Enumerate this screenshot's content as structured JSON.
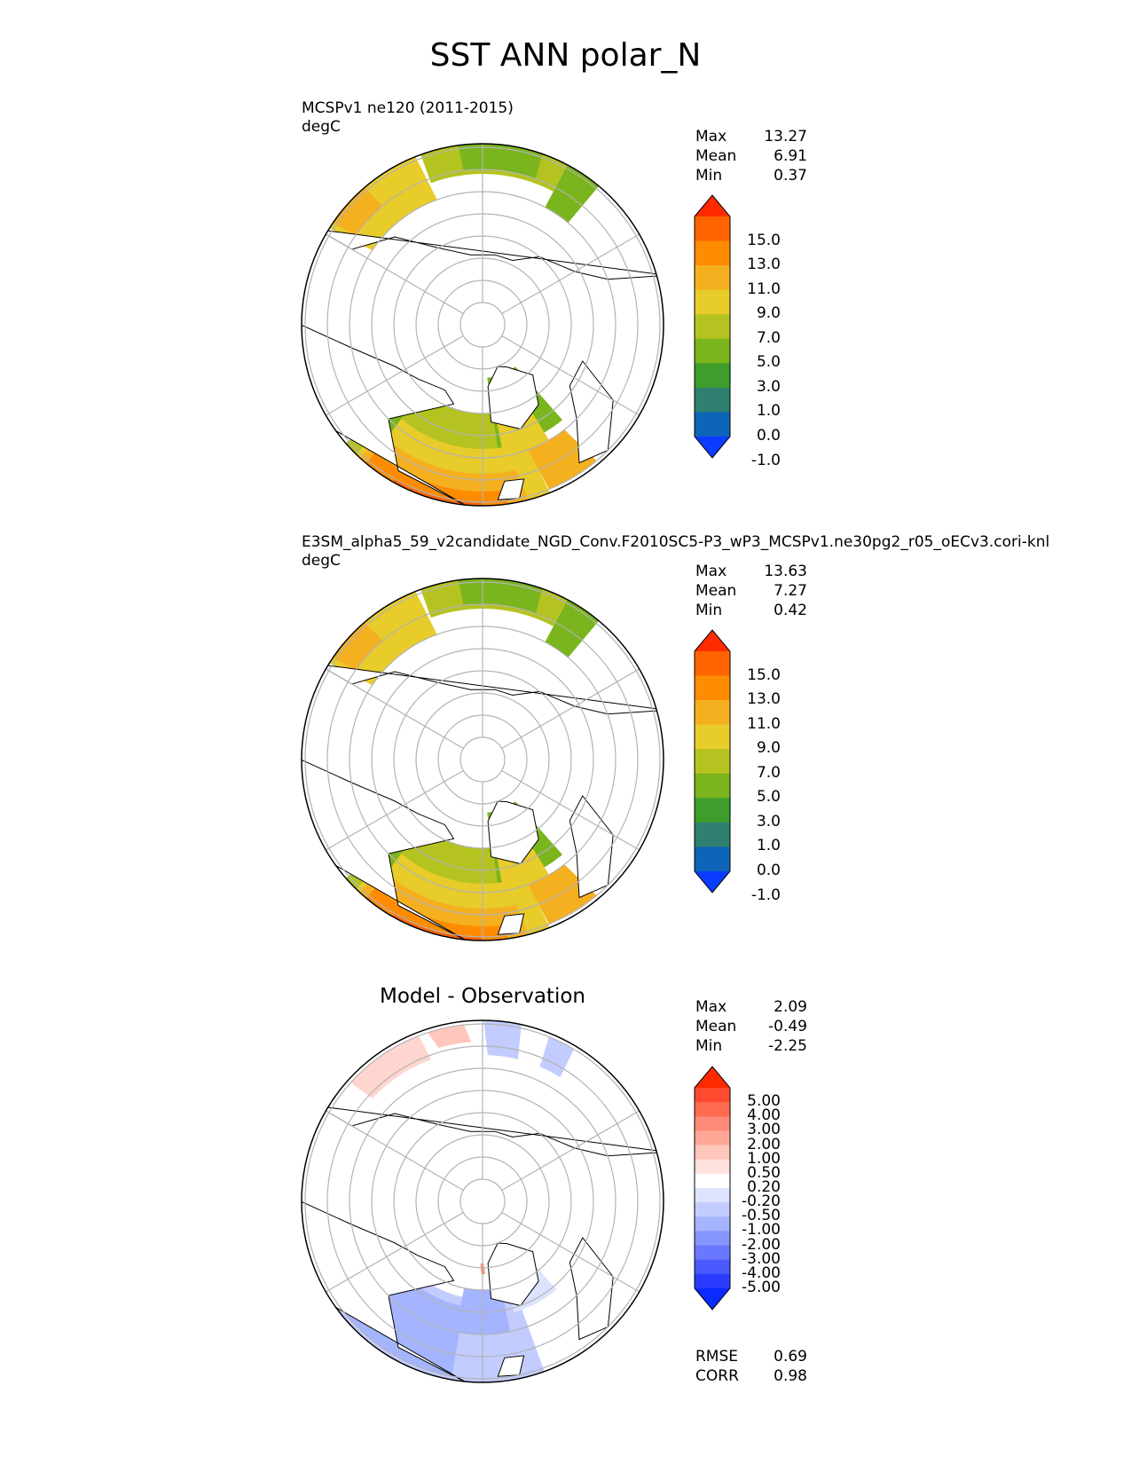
{
  "title": "SST ANN polar_N",
  "panels": [
    {
      "title_line1": "MCSPv1 ne120 (2011-2015)",
      "title_line2": "degC",
      "stats": [
        {
          "label": "Max",
          "value": "13.27"
        },
        {
          "label": "Mean",
          "value": "6.91"
        },
        {
          "label": "Min",
          "value": "0.37"
        }
      ],
      "colorbar_ticks": [
        "15.0",
        "13.0",
        "11.0",
        "9.0",
        "7.0",
        "5.0",
        "3.0",
        "1.0",
        "0.0",
        "-1.0"
      ],
      "colorbar_colors": [
        "#ff2a00",
        "#ff6400",
        "#ff8c00",
        "#f5b020",
        "#e8cc2a",
        "#b5c320",
        "#7ab51d",
        "#3e9d2b",
        "#2f8070",
        "#0d64b8",
        "#0a3cff"
      ]
    },
    {
      "title_line1": "E3SM_alpha5_59_v2candidate_NGD_Conv.F2010SC5-P3_wP3_MCSPv1.ne30pg2_r05_oECv3.cori-knl",
      "title_line2": "degC",
      "stats": [
        {
          "label": "Max",
          "value": "13.63"
        },
        {
          "label": "Mean",
          "value": "7.27"
        },
        {
          "label": "Min",
          "value": "0.42"
        }
      ],
      "colorbar_ticks": [
        "15.0",
        "13.0",
        "11.0",
        "9.0",
        "7.0",
        "5.0",
        "3.0",
        "1.0",
        "0.0",
        "-1.0"
      ],
      "colorbar_colors": [
        "#ff2a00",
        "#ff6400",
        "#ff8c00",
        "#f5b020",
        "#e8cc2a",
        "#b5c320",
        "#7ab51d",
        "#3e9d2b",
        "#2f8070",
        "#0d64b8",
        "#0a3cff"
      ]
    },
    {
      "title_line1": "Model - Observation",
      "stats": [
        {
          "label": "Max",
          "value": "2.09"
        },
        {
          "label": "Mean",
          "value": "-0.49"
        },
        {
          "label": "Min",
          "value": "-2.25"
        }
      ],
      "colorbar_ticks": [
        "5.00",
        "4.00",
        "3.00",
        "2.00",
        "1.00",
        "0.50",
        "0.20",
        "-0.20",
        "-0.50",
        "-1.00",
        "-2.00",
        "-3.00",
        "-4.00",
        "-5.00"
      ],
      "colorbar_colors": [
        "#ff2a00",
        "#ff4a30",
        "#ff6a50",
        "#ff8a78",
        "#ffa898",
        "#ffc6bc",
        "#ffe2dc",
        "#ffffff",
        "#dde3ff",
        "#c2ccff",
        "#a4b4ff",
        "#8796ff",
        "#6a78ff",
        "#4a5aff",
        "#2a3cff",
        "#0a2aff"
      ],
      "extra_stats": [
        {
          "label": "RMSE",
          "value": "0.69"
        },
        {
          "label": "CORR",
          "value": "0.98"
        }
      ]
    }
  ]
}
